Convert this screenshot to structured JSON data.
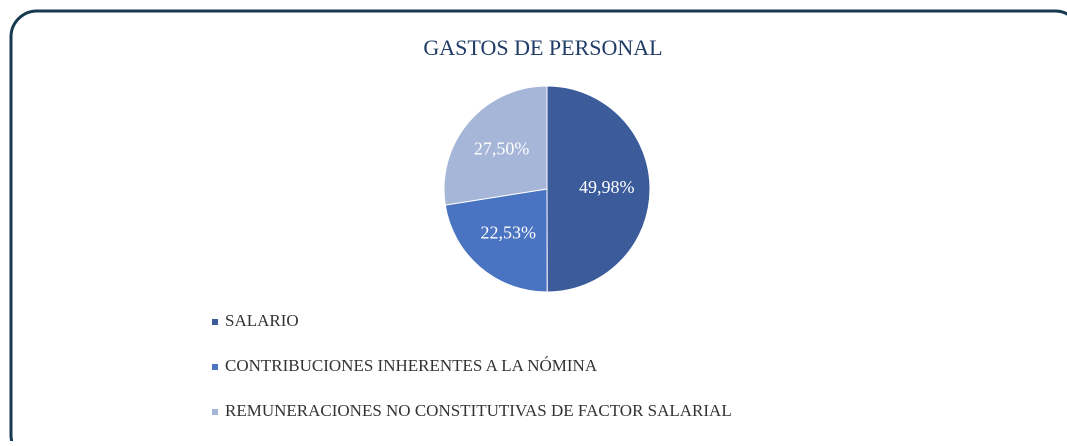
{
  "chart_data": {
    "type": "pie",
    "title": "GASTOS DE PERSONAL",
    "categories": [
      "SALARIO",
      "CONTRIBUCIONES INHERENTES A LA NÓMINA",
      "REMUNERACIONES NO CONSTITUTIVAS DE FACTOR SALARIAL"
    ],
    "values": [
      49.98,
      22.53,
      27.5
    ],
    "value_labels": [
      "49,98%",
      "22,53%",
      "27,50%"
    ],
    "colors": [
      "#3b5b9b",
      "#4a74c2",
      "#a6b6d8"
    ],
    "legend": "bottom-left"
  }
}
